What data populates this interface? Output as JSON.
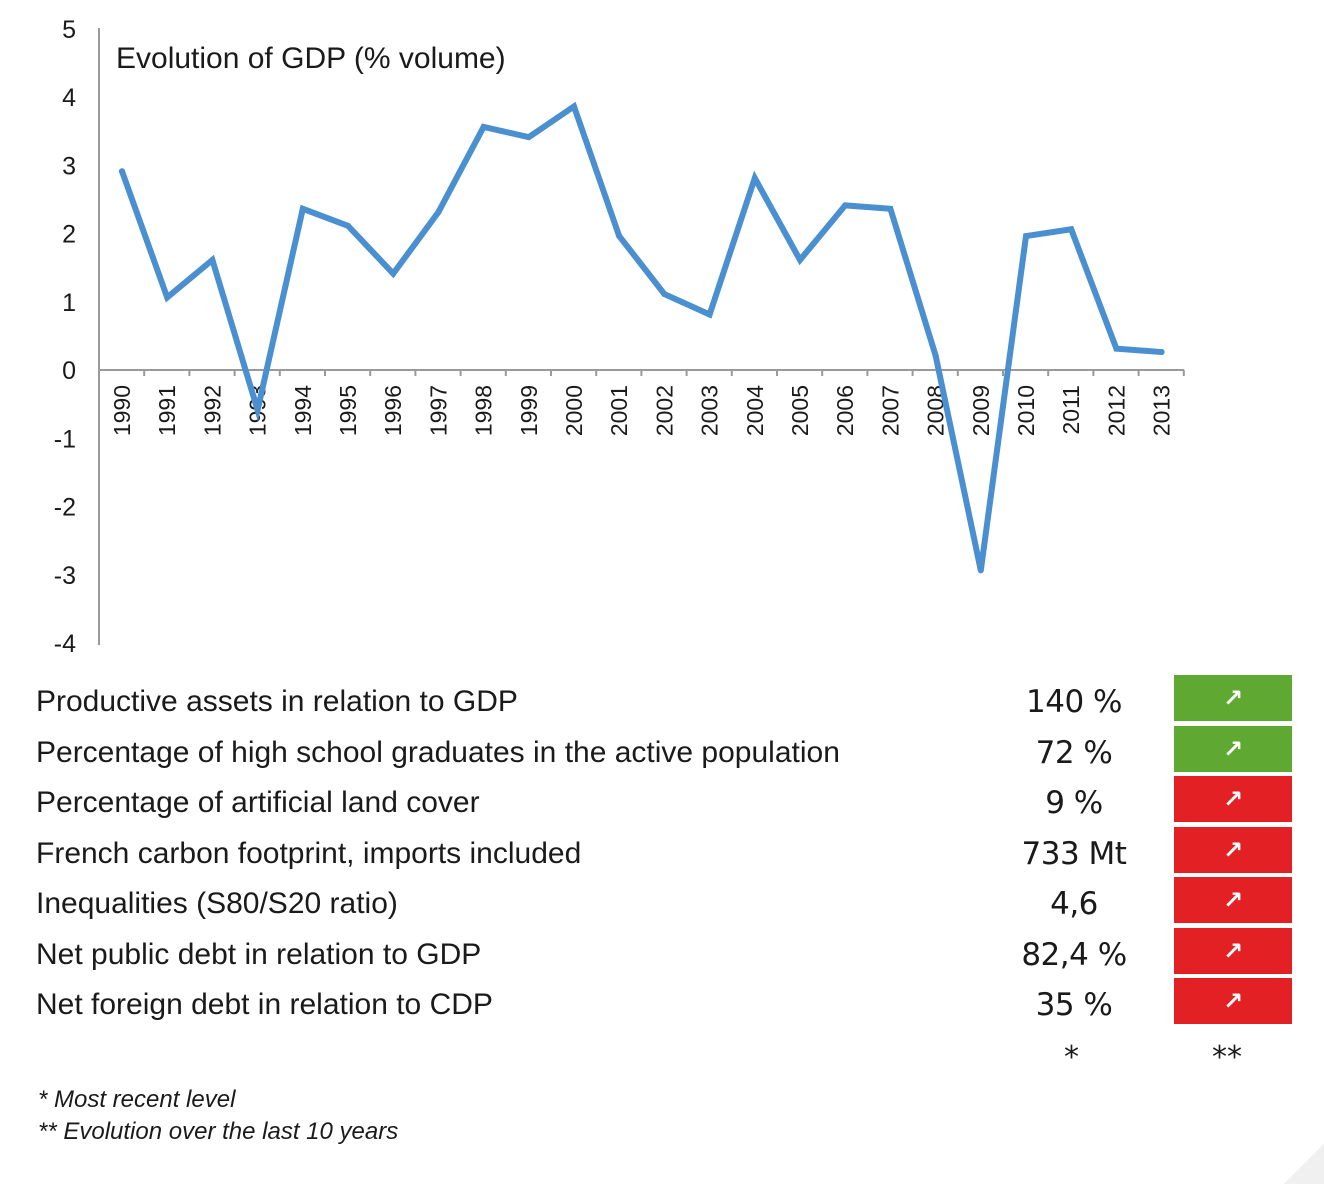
{
  "chart_data": {
    "type": "line",
    "title": "Evolution of GDP (% volume)",
    "xlabel": "",
    "ylabel": "",
    "x": [
      "1990",
      "1991",
      "1992",
      "1993",
      "1994",
      "1995",
      "1996",
      "1997",
      "1998",
      "1999",
      "2000",
      "2001",
      "2002",
      "2003",
      "2004",
      "2005",
      "2006",
      "2007",
      "2008",
      "2009",
      "2010",
      "2011",
      "2012",
      "2013"
    ],
    "series": [
      {
        "values": [
          2.9,
          1.05,
          1.6,
          -0.6,
          2.35,
          2.1,
          1.4,
          2.3,
          3.55,
          3.4,
          3.85,
          1.95,
          1.1,
          0.8,
          2.8,
          1.6,
          2.4,
          2.35,
          0.2,
          -2.95,
          1.95,
          2.05,
          0.3,
          0.25
        ],
        "color": "#4a8fd0"
      }
    ],
    "ylim": [
      -4,
      5
    ],
    "yticks": [
      "5",
      "4",
      "3",
      "2",
      "1",
      "0",
      "-1",
      "-2",
      "-3",
      "-4"
    ],
    "grid": false,
    "legend": "none"
  },
  "indicators": [
    {
      "label": "Productive assets in relation to GDP",
      "value": "140 %",
      "trend": "↗",
      "status_color": "#5fa832"
    },
    {
      "label": "Percentage of high school graduates in the active population",
      "value": "72 %",
      "trend": "↗",
      "status_color": "#5fa832"
    },
    {
      "label": "Percentage of artificial land cover",
      "value": "9 %",
      "trend": "↗",
      "status_color": "#e32124"
    },
    {
      "label": "French carbon footprint, imports included",
      "value": "733 Mt",
      "trend": "↗",
      "status_color": "#e32124"
    },
    {
      "label": "Inequalities (S80/S20 ratio)",
      "value": "4,6",
      "trend": "↗",
      "status_color": "#e32124"
    },
    {
      "label": "Net public debt in relation to GDP",
      "value": "82,4 %",
      "trend": "↗",
      "status_color": "#e32124"
    },
    {
      "label": "Net foreign debt in relation to CDP",
      "value": "35 %",
      "trend": "↗",
      "status_color": "#e32124"
    }
  ],
  "column_marks": {
    "value": "*",
    "trend": "**"
  },
  "footnotes": [
    "* Most recent level",
    "** Evolution over the last 10 years"
  ]
}
